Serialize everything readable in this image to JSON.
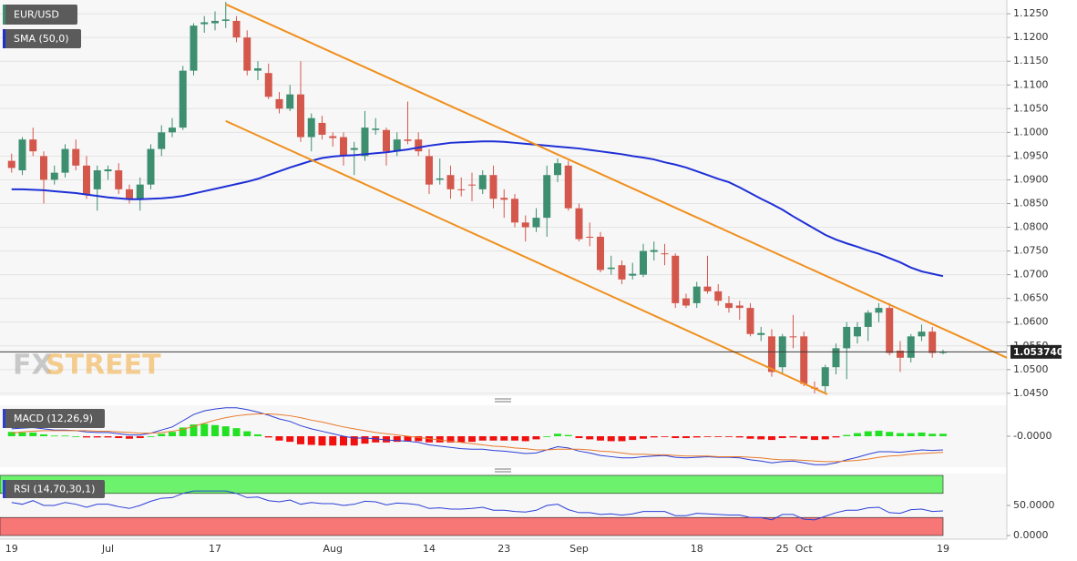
{
  "chart_data": [
    {
      "type": "candlestick",
      "title": "EUR/USD",
      "categories": [
        "19",
        null,
        null,
        null,
        null,
        null,
        null,
        null,
        null,
        "Jul",
        null,
        null,
        null,
        null,
        null,
        null,
        null,
        null,
        null,
        "17",
        null,
        null,
        null,
        null,
        null,
        null,
        null,
        null,
        null,
        null,
        "Aug",
        null,
        null,
        null,
        null,
        null,
        null,
        null,
        null,
        "14",
        null,
        null,
        null,
        null,
        null,
        null,
        "23",
        null,
        null,
        null,
        null,
        null,
        null,
        "Sep",
        null,
        null,
        null,
        null,
        null,
        null,
        null,
        null,
        null,
        null,
        "18",
        null,
        null,
        null,
        null,
        null,
        null,
        null,
        "25",
        null,
        "Oct",
        null,
        null,
        null,
        null,
        null,
        null,
        null,
        null,
        null,
        null,
        null,
        null,
        "19"
      ],
      "open": [
        1.094,
        1.092,
        1.0985,
        1.095,
        1.09,
        1.0915,
        1.0965,
        1.093,
        1.088,
        1.0918,
        1.092,
        1.088,
        1.086,
        1.089,
        1.0965,
        1.1,
        1.101,
        1.113,
        1.1228,
        1.123,
        1.1235,
        1.1235,
        1.12,
        1.113,
        1.1125,
        1.107,
        1.105,
        1.108,
        1.099,
        1.102,
        1.0992,
        1.099,
        1.0963,
        1.095,
        1.1005,
        1.1005,
        1.096,
        1.0985,
        1.0985,
        1.095,
        1.09,
        1.091,
        1.088,
        1.089,
        1.088,
        1.091,
        1.0862,
        1.086,
        1.081,
        1.08,
        1.082,
        1.091,
        1.093,
        1.084,
        1.078,
        1.078,
        1.0712,
        1.072,
        1.0698,
        1.07,
        1.0748,
        1.0745,
        1.074,
        1.065,
        1.064,
        1.0675,
        1.0665,
        1.064,
        1.0635,
        1.063,
        1.0573,
        1.057,
        1.0505,
        1.057,
        1.057,
        1.0462,
        1.0465,
        1.0505,
        1.0545,
        1.057,
        1.059,
        1.062,
        1.063,
        1.054,
        1.0525,
        1.057,
        1.058,
        1.0536
      ],
      "high": [
        1.0955,
        1.099,
        1.101,
        1.096,
        1.093,
        1.0975,
        1.0985,
        1.095,
        1.093,
        1.093,
        1.0935,
        1.089,
        1.0905,
        1.0975,
        1.1015,
        1.103,
        1.114,
        1.123,
        1.1245,
        1.1255,
        1.1275,
        1.1245,
        1.1215,
        1.115,
        1.1145,
        1.1085,
        1.11,
        1.115,
        1.104,
        1.1035,
        1.1,
        1.1,
        1.098,
        1.1045,
        1.103,
        1.101,
        1.1,
        1.1065,
        1.1,
        1.0965,
        1.0945,
        1.093,
        1.0905,
        1.0915,
        1.092,
        1.093,
        1.088,
        1.087,
        1.0825,
        1.084,
        1.093,
        1.0945,
        1.094,
        1.085,
        1.081,
        1.079,
        1.074,
        1.073,
        1.0725,
        1.0765,
        1.077,
        1.0765,
        1.0745,
        1.066,
        1.0685,
        1.074,
        1.068,
        1.0655,
        1.0645,
        1.064,
        1.059,
        1.0585,
        1.0575,
        1.0615,
        1.058,
        1.0475,
        1.051,
        1.0555,
        1.06,
        1.06,
        1.0625,
        1.064,
        1.064,
        1.056,
        1.0575,
        1.0595,
        1.059,
        1.0542
      ],
      "low": [
        1.0915,
        1.091,
        1.095,
        1.085,
        1.089,
        1.0905,
        1.092,
        1.086,
        1.0835,
        1.09,
        1.087,
        1.085,
        1.0835,
        1.088,
        1.095,
        1.099,
        1.1005,
        1.112,
        1.121,
        1.1215,
        1.122,
        1.119,
        1.112,
        1.111,
        1.107,
        1.104,
        1.1045,
        1.098,
        1.096,
        1.0985,
        1.097,
        1.093,
        1.091,
        1.094,
        1.0995,
        1.093,
        1.095,
        1.0975,
        1.095,
        1.087,
        1.089,
        1.086,
        1.0865,
        1.0855,
        1.087,
        1.084,
        1.082,
        1.08,
        1.077,
        1.079,
        1.078,
        1.0895,
        1.0835,
        1.077,
        1.076,
        1.0705,
        1.07,
        1.068,
        1.069,
        1.0695,
        1.073,
        1.072,
        1.063,
        1.063,
        1.063,
        1.066,
        1.0635,
        1.062,
        1.0605,
        1.057,
        1.056,
        1.0485,
        1.049,
        1.0545,
        1.0465,
        1.045,
        1.045,
        1.049,
        1.048,
        1.0555,
        1.056,
        1.06,
        1.053,
        1.0495,
        1.0515,
        1.056,
        1.0525,
        1.0532
      ],
      "close": [
        1.0925,
        1.0985,
        1.096,
        1.09,
        1.0915,
        1.0965,
        1.093,
        1.087,
        1.092,
        1.0922,
        1.088,
        1.086,
        1.089,
        1.0965,
        1.1,
        1.101,
        1.113,
        1.1225,
        1.1232,
        1.1235,
        1.1238,
        1.12,
        1.113,
        1.1135,
        1.1075,
        1.105,
        1.108,
        1.099,
        1.103,
        1.0995,
        1.0988,
        1.095,
        1.0967,
        1.101,
        1.1008,
        1.096,
        1.0985,
        1.0982,
        1.096,
        1.089,
        1.0903,
        1.088,
        1.0878,
        1.0888,
        1.091,
        1.086,
        1.0858,
        1.081,
        1.08,
        1.082,
        1.091,
        1.0935,
        1.084,
        1.0775,
        1.0778,
        1.071,
        1.0715,
        1.069,
        1.0702,
        1.075,
        1.0752,
        1.0743,
        1.064,
        1.0635,
        1.0675,
        1.0665,
        1.0645,
        1.063,
        1.063,
        1.0575,
        1.0577,
        1.0495,
        1.057,
        1.0568,
        1.047,
        1.046,
        1.0505,
        1.0545,
        1.059,
        1.059,
        1.062,
        1.063,
        1.0535,
        1.0525,
        1.057,
        1.058,
        1.0535,
        1.0537
      ],
      "up_color": "#3d8f70",
      "down_color": "#d4574c",
      "series": [
        {
          "name": "SMA (50,0)",
          "color": "#1e2fd6",
          "values": [
            1.088,
            1.088,
            1.0879,
            1.0878,
            1.0876,
            1.0874,
            1.0872,
            1.0869,
            1.0866,
            1.0863,
            1.0861,
            1.0859,
            1.0859,
            1.086,
            1.0861,
            1.0863,
            1.0866,
            1.0871,
            1.0876,
            1.0881,
            1.0886,
            1.0891,
            1.0896,
            1.0902,
            1.091,
            1.0918,
            1.0926,
            1.0933,
            1.094,
            1.0946,
            1.0949,
            1.0951,
            1.0952,
            1.0954,
            1.0956,
            1.0958,
            1.0961,
            1.0964,
            1.0968,
            1.0972,
            1.0975,
            1.0978,
            1.0979,
            1.098,
            1.0981,
            1.0981,
            1.098,
            1.0978,
            1.0976,
            1.0974,
            1.0972,
            1.097,
            1.0968,
            1.0966,
            1.0963,
            1.096,
            1.0957,
            1.0954,
            1.095,
            1.0947,
            1.0943,
            1.0937,
            1.0932,
            1.0926,
            1.0918,
            1.091,
            1.0902,
            1.0895,
            1.0884,
            1.0872,
            1.086,
            1.0849,
            1.0837,
            1.0823,
            1.081,
            1.0797,
            1.0784,
            1.0774,
            1.0766,
            1.0759,
            1.0751,
            1.0744,
            1.0735,
            1.0726,
            1.0715,
            1.0707,
            1.0702,
            1.0697
          ]
        }
      ],
      "trendlines": [
        {
          "x": [
            20,
            92.96
          ],
          "y": [
            1.127,
            1.0525
          ]
        },
        {
          "x": [
            20,
            76.2
          ],
          "y": [
            1.1024,
            1.0448
          ]
        }
      ],
      "trendline_color": "#f0901e",
      "last_price": {
        "value": 1.05374,
        "label": "1.053740"
      },
      "watermark_prefix": "FX",
      "watermark_suffix": "STREET",
      "xlim": [
        -1.085,
        92.96
      ],
      "ylim": [
        1.0444,
        1.1279
      ],
      "yticks": [
        {
          "value": 1.125,
          "label": "1.1250"
        },
        {
          "value": 1.12,
          "label": "1.1200"
        },
        {
          "value": 1.115,
          "label": "1.1150"
        },
        {
          "value": 1.11,
          "label": "1.1100"
        },
        {
          "value": 1.105,
          "label": "1.1050"
        },
        {
          "value": 1.1,
          "label": "1.1000"
        },
        {
          "value": 1.095,
          "label": "1.0950"
        },
        {
          "value": 1.09,
          "label": "1.0900"
        },
        {
          "value": 1.085,
          "label": "1.0850"
        },
        {
          "value": 1.08,
          "label": "1.0800"
        },
        {
          "value": 1.075,
          "label": "1.0750"
        },
        {
          "value": 1.07,
          "label": "1.0700"
        },
        {
          "value": 1.065,
          "label": "1.0650"
        },
        {
          "value": 1.06,
          "label": "1.0600"
        },
        {
          "value": 1.055,
          "label": "1.0550"
        },
        {
          "value": 1.05,
          "label": "1.0500"
        },
        {
          "value": 1.045,
          "label": "1.0450"
        }
      ],
      "grid": true
    },
    {
      "type": "macd",
      "title": "MACD (12,26,9)",
      "macd": [
        0.0012,
        0.0013,
        0.0014,
        0.0012,
        0.001,
        0.001,
        0.0009,
        0.0007,
        0.0006,
        0.0006,
        0.0004,
        0.0002,
        0.0002,
        0.0005,
        0.001,
        0.0015,
        0.0025,
        0.0035,
        0.0041,
        0.0044,
        0.0046,
        0.0046,
        0.0043,
        0.0039,
        0.0034,
        0.0028,
        0.0024,
        0.0017,
        0.0012,
        0.0008,
        0.0004,
        0.0,
        -0.0003,
        -0.0003,
        -0.0004,
        -0.0006,
        -0.0007,
        -0.0008,
        -0.001,
        -0.0014,
        -0.0016,
        -0.0018,
        -0.002,
        -0.0021,
        -0.0021,
        -0.0023,
        -0.0024,
        -0.0026,
        -0.0028,
        -0.0027,
        -0.0022,
        -0.0017,
        -0.0019,
        -0.0024,
        -0.0027,
        -0.0031,
        -0.0033,
        -0.0035,
        -0.0035,
        -0.0033,
        -0.0032,
        -0.0031,
        -0.0034,
        -0.0035,
        -0.0034,
        -0.0033,
        -0.0034,
        -0.0034,
        -0.0035,
        -0.0038,
        -0.004,
        -0.0043,
        -0.0041,
        -0.004,
        -0.0043,
        -0.0046,
        -0.0046,
        -0.0043,
        -0.0038,
        -0.0034,
        -0.0029,
        -0.0025,
        -0.0025,
        -0.0026,
        -0.0024,
        -0.0022,
        -0.0023,
        -0.0022
      ],
      "signal": [
        0.0005,
        0.0007,
        0.0008,
        0.0009,
        0.0009,
        0.0009,
        0.0009,
        0.0009,
        0.0008,
        0.0008,
        0.0007,
        0.0006,
        0.0005,
        0.0005,
        0.0006,
        0.0008,
        0.0011,
        0.0016,
        0.0021,
        0.0026,
        0.003,
        0.0033,
        0.0035,
        0.0036,
        0.0036,
        0.0035,
        0.0033,
        0.003,
        0.0026,
        0.0023,
        0.0019,
        0.0015,
        0.0012,
        0.0009,
        0.0006,
        0.0004,
        0.0002,
        0.0,
        -0.0002,
        -0.0004,
        -0.0006,
        -0.0008,
        -0.001,
        -0.0012,
        -0.0014,
        -0.0016,
        -0.0017,
        -0.0019,
        -0.002,
        -0.0022,
        -0.0022,
        -0.0021,
        -0.0021,
        -0.0021,
        -0.0022,
        -0.0024,
        -0.0025,
        -0.0027,
        -0.0029,
        -0.0029,
        -0.003,
        -0.003,
        -0.0031,
        -0.0032,
        -0.0032,
        -0.0032,
        -0.0033,
        -0.0033,
        -0.0033,
        -0.0034,
        -0.0035,
        -0.0037,
        -0.0038,
        -0.0038,
        -0.0039,
        -0.004,
        -0.0041,
        -0.0041,
        -0.004,
        -0.0039,
        -0.0037,
        -0.0034,
        -0.0032,
        -0.0031,
        -0.0029,
        -0.0028,
        -0.0027,
        -0.0026
      ],
      "histogram": [
        0.0007,
        0.0006,
        0.0006,
        0.0003,
        0.0001,
        0.0001,
        0.0,
        -0.0002,
        -0.0002,
        -0.0002,
        -0.0003,
        -0.0004,
        -0.0003,
        0.0,
        0.0004,
        0.0007,
        0.0014,
        0.0019,
        0.002,
        0.0018,
        0.0016,
        0.0013,
        0.0008,
        0.0003,
        -0.0002,
        -0.0007,
        -0.0009,
        -0.0013,
        -0.0014,
        -0.0015,
        -0.0015,
        -0.0015,
        -0.0015,
        -0.0012,
        -0.001,
        -0.001,
        -0.0009,
        -0.0008,
        -0.0008,
        -0.001,
        -0.001,
        -0.001,
        -0.001,
        -0.0009,
        -0.0007,
        -0.0007,
        -0.0007,
        -0.0007,
        -0.0008,
        -0.0005,
        0.0,
        0.0004,
        0.0002,
        -0.0003,
        -0.0005,
        -0.0007,
        -0.0008,
        -0.0008,
        -0.0006,
        -0.0004,
        -0.0002,
        -0.0001,
        -0.0003,
        -0.0003,
        -0.0002,
        -0.0001,
        -0.0001,
        -0.0001,
        -0.0002,
        -0.0004,
        -0.0005,
        -0.0006,
        -0.0003,
        -0.0002,
        -0.0004,
        -0.0006,
        -0.0005,
        -0.0002,
        0.0002,
        0.0005,
        0.0008,
        0.0009,
        0.0007,
        0.0005,
        0.0005,
        0.0006,
        0.0004,
        0.0004
      ],
      "macd_color": "#2b3fd6",
      "signal_color": "#e8792b",
      "up_color": "#22e022",
      "down_color": "#f01010",
      "ylim": [
        -0.005,
        0.005
      ],
      "yticks": [
        {
          "value": 0,
          "label": "-0.0000"
        }
      ]
    },
    {
      "type": "rsi",
      "title": "RSI (14,70,30,1)",
      "values": [
        55,
        52,
        58,
        50,
        50,
        55,
        52,
        47,
        52,
        52,
        48,
        45,
        50,
        57,
        62,
        63,
        70,
        74,
        74,
        74,
        74,
        70,
        63,
        64,
        58,
        56,
        59,
        52,
        55,
        53,
        53,
        50,
        52,
        57,
        56,
        51,
        54,
        53,
        51,
        45,
        46,
        44,
        44,
        45,
        47,
        42,
        42,
        40,
        39,
        42,
        50,
        52,
        43,
        38,
        38,
        35,
        36,
        34,
        36,
        40,
        40,
        40,
        33,
        33,
        37,
        36,
        35,
        34,
        34,
        30,
        30,
        26,
        35,
        35,
        27,
        26,
        32,
        38,
        42,
        42,
        46,
        47,
        38,
        37,
        43,
        44,
        40,
        41
      ],
      "color": "#2b3fd6",
      "overbought": 70,
      "oversold": 30,
      "overbought_color": "#6cf26c",
      "oversold_color": "#f77777",
      "ylim": [
        0,
        100
      ],
      "yticks": [
        {
          "value": 50,
          "label": "50.0000"
        },
        {
          "value": 0,
          "label": "0.0000"
        }
      ]
    }
  ]
}
